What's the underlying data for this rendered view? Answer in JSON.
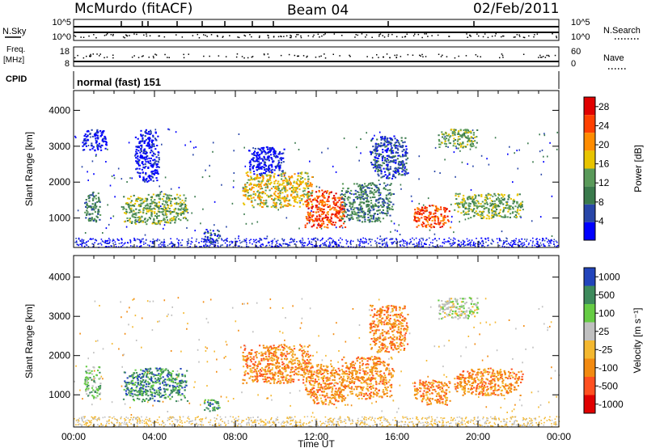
{
  "header": {
    "station": "McMurdo (fitACF)",
    "beam": "Beam 04",
    "date": "02/Feb/2011"
  },
  "status_panel": {
    "nsky_label": "N.Sky",
    "nsearch_label": "N.Search",
    "noise_ticks": [
      "10^5",
      "10^0"
    ],
    "freq_label": "Freq.",
    "freq_unit": "[MHz]",
    "freq_ticks": [
      "18",
      "8"
    ],
    "nave_label": "Nave",
    "nave_ticks": [
      "60",
      "0"
    ],
    "cpid_label": "CPID",
    "cpid_value": "normal (fast) 151"
  },
  "colors": {
    "power_scale": [
      "#0000ff",
      "#2846a8",
      "#3a7a4c",
      "#5a9a5a",
      "#e8c400",
      "#ff8c00",
      "#ff4000",
      "#e00000"
    ],
    "velocity_scale": [
      "#2244bb",
      "#3d8a5c",
      "#66cc44",
      "#c0c0c0",
      "#f4b830",
      "#f28a10",
      "#ff5020",
      "#e00000"
    ],
    "ground_scatter": "#888888"
  },
  "chart_data": [
    {
      "type": "heatmap",
      "name": "power",
      "ylabel": "Slant Range [km]",
      "xlabel": "",
      "x_ticks": [
        "00:00",
        "04:00",
        "08:00",
        "12:00",
        "16:00",
        "20:00",
        "00:00"
      ],
      "x_tick_hours": [
        0,
        4,
        8,
        12,
        16,
        20,
        24
      ],
      "y_ticks": [
        1000,
        2000,
        3000,
        4000
      ],
      "xlim_hours": [
        0,
        24
      ],
      "ylim_km": [
        180,
        4550
      ],
      "colorbar": {
        "label": "Power [dB]",
        "ticks": [
          "28",
          "24",
          "20",
          "16",
          "12",
          "8",
          "4"
        ],
        "tick_values": [
          28,
          24,
          20,
          16,
          12,
          8,
          4
        ],
        "range": [
          0,
          30
        ]
      },
      "echo_regions": [
        {
          "t0": 0.5,
          "t1": 1.3,
          "r0": 900,
          "r1": 1750,
          "level": 2
        },
        {
          "t0": 0.4,
          "t1": 1.6,
          "r0": 2900,
          "r1": 3500,
          "level": 0
        },
        {
          "t0": 2.4,
          "t1": 5.6,
          "r0": 850,
          "r1": 1700,
          "level": 3
        },
        {
          "t0": 3.0,
          "t1": 4.2,
          "r0": 2000,
          "r1": 3500,
          "level": 0
        },
        {
          "t0": 6.4,
          "t1": 7.2,
          "r0": 320,
          "r1": 700,
          "level": 1
        },
        {
          "t0": 8.3,
          "t1": 11.8,
          "r0": 1300,
          "r1": 2300,
          "level": 4
        },
        {
          "t0": 8.6,
          "t1": 10.4,
          "r0": 2200,
          "r1": 3000,
          "level": 0
        },
        {
          "t0": 11.4,
          "t1": 13.4,
          "r0": 750,
          "r1": 1800,
          "level": 6
        },
        {
          "t0": 13.2,
          "t1": 15.8,
          "r0": 900,
          "r1": 2000,
          "level": 2
        },
        {
          "t0": 14.6,
          "t1": 16.5,
          "r0": 2100,
          "r1": 3300,
          "level": 1
        },
        {
          "t0": 16.8,
          "t1": 18.6,
          "r0": 750,
          "r1": 1400,
          "level": 6
        },
        {
          "t0": 18.0,
          "t1": 20.0,
          "r0": 2950,
          "r1": 3500,
          "level": 3
        },
        {
          "t0": 18.8,
          "t1": 22.2,
          "r0": 1000,
          "r1": 1700,
          "level": 3
        }
      ]
    },
    {
      "type": "heatmap",
      "name": "velocity",
      "ylabel": "Slant Range [km]",
      "xlabel": "Time UT",
      "x_ticks": [
        "00:00",
        "04:00",
        "08:00",
        "12:00",
        "16:00",
        "20:00",
        "00:00"
      ],
      "x_tick_hours": [
        0,
        4,
        8,
        12,
        16,
        20,
        24
      ],
      "y_ticks": [
        1000,
        2000,
        3000,
        4000
      ],
      "xlim_hours": [
        0,
        24
      ],
      "ylim_km": [
        180,
        4550
      ],
      "colorbar": {
        "label": "Velocity [m s⁻¹]",
        "ticks": [
          "1000",
          "500",
          "100",
          "25",
          "-25",
          "-100",
          "-500",
          "-1000"
        ]
      },
      "echo_regions": [
        {
          "t0": 0.5,
          "t1": 1.3,
          "r0": 900,
          "r1": 1750,
          "level": 2
        },
        {
          "t0": 2.4,
          "t1": 5.6,
          "r0": 850,
          "r1": 1700,
          "level": 1
        },
        {
          "t0": 6.4,
          "t1": 7.2,
          "r0": 600,
          "r1": 900,
          "level": 1
        },
        {
          "t0": 8.3,
          "t1": 11.8,
          "r0": 1300,
          "r1": 2300,
          "level": 5
        },
        {
          "t0": 11.4,
          "t1": 13.4,
          "r0": 750,
          "r1": 1800,
          "level": 5
        },
        {
          "t0": 13.2,
          "t1": 15.8,
          "r0": 900,
          "r1": 2000,
          "level": 5
        },
        {
          "t0": 14.6,
          "t1": 16.5,
          "r0": 2100,
          "r1": 3300,
          "level": 5
        },
        {
          "t0": 16.8,
          "t1": 18.6,
          "r0": 750,
          "r1": 1400,
          "level": 5
        },
        {
          "t0": 18.0,
          "t1": 20.0,
          "r0": 2950,
          "r1": 3500,
          "level": 3
        },
        {
          "t0": 18.8,
          "t1": 22.2,
          "r0": 1000,
          "r1": 1700,
          "level": 5
        }
      ]
    }
  ]
}
